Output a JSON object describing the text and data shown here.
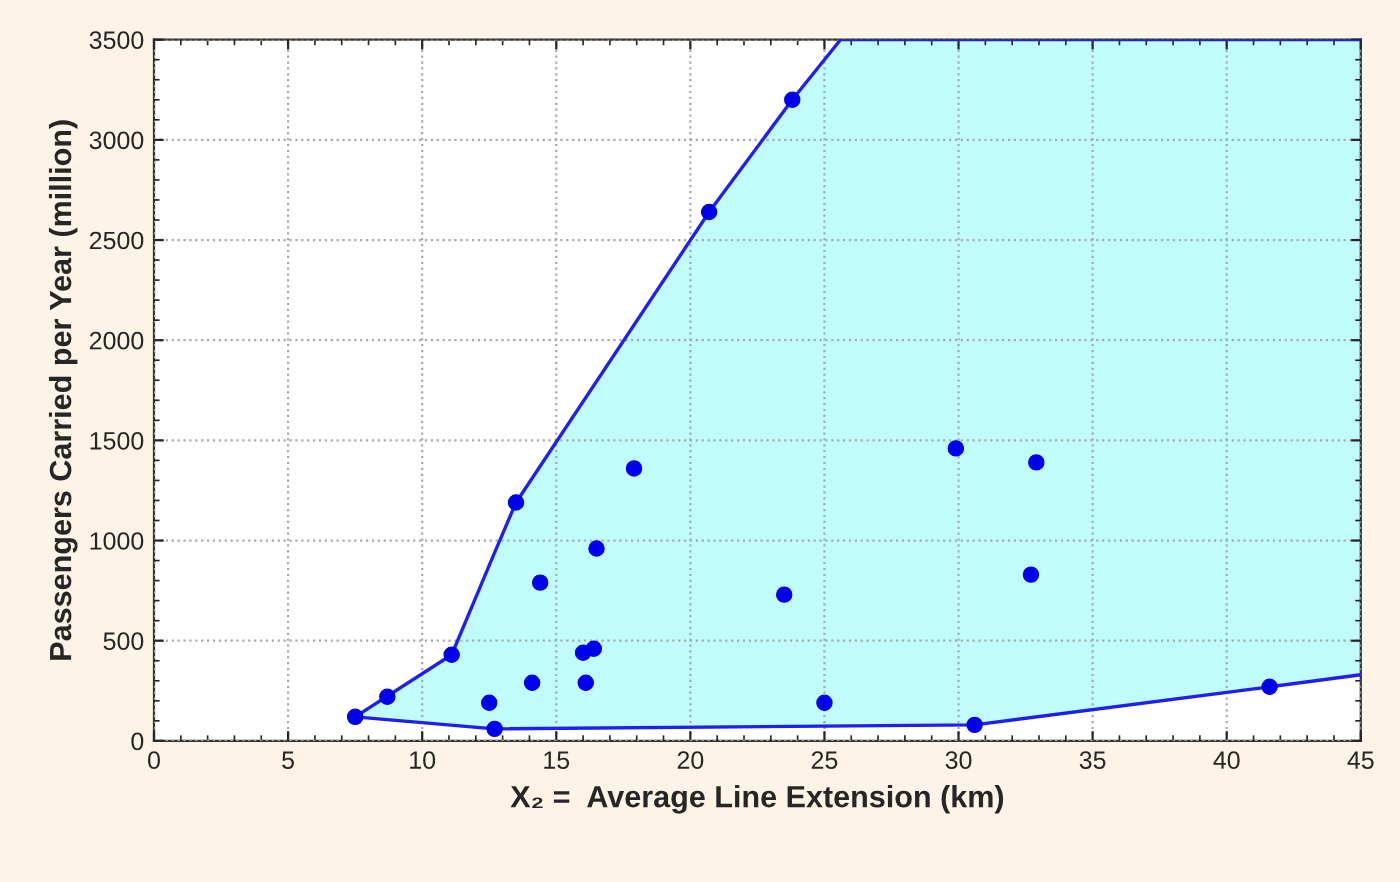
{
  "chart_data": {
    "type": "scatter",
    "xlabel": "X₂ =  Average Line Extension (km)",
    "ylabel": "Passengers Carried per Year (million)",
    "xlim": [
      0,
      45
    ],
    "xticks": [
      0,
      5,
      10,
      15,
      20,
      25,
      30,
      35,
      40,
      45
    ],
    "ylim": [
      0,
      3500
    ],
    "yticks": [
      0,
      500,
      1000,
      1500,
      2000,
      2500,
      3000,
      3500
    ],
    "grid": true,
    "series": [
      {
        "type": "area",
        "color": "#c0fcfc",
        "x": [
          7.5,
          11.1,
          12.7,
          13.5,
          20.7,
          23.8,
          25.6,
          30.6,
          41.6,
          45
        ],
        "values": [
          120,
          430,
          940,
          1190,
          2640,
          3200,
          3500,
          3500,
          3500,
          3500
        ]
      },
      {
        "type": "area",
        "color": "#ffffff",
        "x": [
          7.5,
          12.7,
          30.6,
          41.6,
          45
        ],
        "values": [
          120,
          60,
          80,
          270,
          330
        ]
      },
      {
        "color": "#0000ee",
        "marker": "circle",
        "x": [
          7.5,
          8.7,
          11.1,
          13.5,
          14.4,
          12.5,
          12.7,
          14.1,
          16.0,
          16.4,
          16.1,
          16.5,
          17.9,
          20.7,
          23.8,
          23.5,
          25.0,
          29.9,
          32.9,
          32.7,
          30.6,
          41.6
        ],
        "values": [
          120,
          220,
          430,
          1190,
          790,
          190,
          60,
          290,
          440,
          460,
          290,
          960,
          1360,
          2640,
          3200,
          730,
          190,
          1460,
          1390,
          830,
          80,
          270
        ]
      }
    ]
  }
}
